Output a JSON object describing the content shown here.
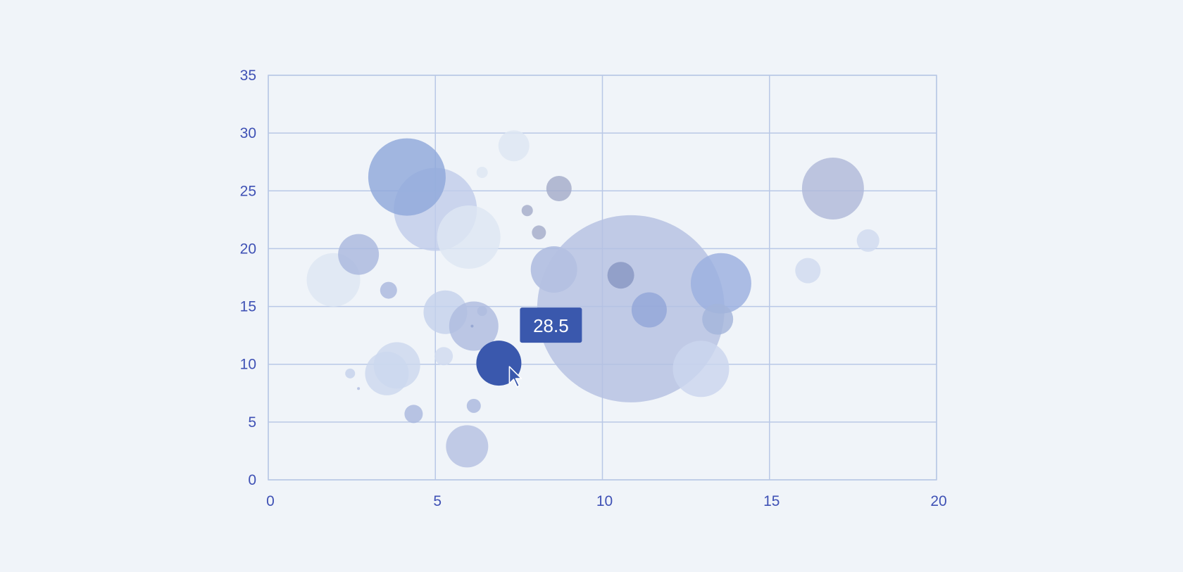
{
  "chart_data": {
    "type": "scatter",
    "variant": "bubble",
    "title": "",
    "xlabel": "",
    "ylabel": "",
    "xlim": [
      0,
      20
    ],
    "ylim": [
      0,
      35
    ],
    "x_ticks": [
      "0",
      "5",
      "10",
      "15",
      "20"
    ],
    "y_ticks": [
      "0",
      "5",
      "10",
      "15",
      "20",
      "25",
      "30",
      "35"
    ],
    "grid": true,
    "legend": "none",
    "colors": {
      "background": "#f0f4f9",
      "grid": "#b9c8e6",
      "tick_label": "#3f51b5",
      "highlight": "#3a58ad",
      "tooltip": "#3a58ad"
    },
    "points": [
      {
        "x": 1.95,
        "y": 17.3,
        "size": 38,
        "color": "#dde6f3"
      },
      {
        "x": 2.7,
        "y": 19.5,
        "size": 29,
        "color": "#a9b8de"
      },
      {
        "x": 2.45,
        "y": 9.2,
        "size": 7,
        "color": "#c5d2ec"
      },
      {
        "x": 2.7,
        "y": 7.9,
        "size": 2,
        "color": "#aebcdf"
      },
      {
        "x": 3.6,
        "y": 16.4,
        "size": 12,
        "color": "#a9b8de"
      },
      {
        "x": 3.55,
        "y": 9.2,
        "size": 31,
        "color": "#ccd8ee"
      },
      {
        "x": 3.85,
        "y": 9.9,
        "size": 33,
        "color": "#ccd8ee"
      },
      {
        "x": 4.35,
        "y": 5.7,
        "size": 13,
        "color": "#a9b8de"
      },
      {
        "x": 5.0,
        "y": 23.4,
        "size": 59,
        "color": "#c1cdea"
      },
      {
        "x": 6.0,
        "y": 21.0,
        "size": 45,
        "color": "#dde6f3"
      },
      {
        "x": 4.15,
        "y": 26.2,
        "size": 55,
        "color": "#8fa8da"
      },
      {
        "x": 5.3,
        "y": 14.5,
        "size": 31,
        "color": "#c5d2ec"
      },
      {
        "x": 5.25,
        "y": 10.7,
        "size": 13,
        "color": "#cfdaef"
      },
      {
        "x": 6.15,
        "y": 13.3,
        "size": 35,
        "color": "#aebcdf"
      },
      {
        "x": 6.1,
        "y": 13.3,
        "size": 2,
        "color": "#8fa1cf"
      },
      {
        "x": 6.4,
        "y": 14.6,
        "size": 7,
        "color": "#aebcdf"
      },
      {
        "x": 6.4,
        "y": 26.6,
        "size": 8,
        "color": "#dde6f3"
      },
      {
        "x": 7.35,
        "y": 28.9,
        "size": 22,
        "color": "#dde6f3"
      },
      {
        "x": 7.75,
        "y": 23.3,
        "size": 8,
        "color": "#a3acc9"
      },
      {
        "x": 8.1,
        "y": 21.4,
        "size": 10,
        "color": "#a3acc9"
      },
      {
        "x": 8.7,
        "y": 25.2,
        "size": 18,
        "color": "#a3acc9"
      },
      {
        "x": 8.55,
        "y": 18.2,
        "size": 33,
        "color": "#a9b8de"
      },
      {
        "x": 6.15,
        "y": 6.4,
        "size": 10,
        "color": "#a9b8de"
      },
      {
        "x": 5.95,
        "y": 2.9,
        "size": 30,
        "color": "#b4c1e2"
      },
      {
        "x": 10.85,
        "y": 14.8,
        "size": 133,
        "color": "#b4c1e2"
      },
      {
        "x": 10.55,
        "y": 17.7,
        "size": 19,
        "color": "#8896c2"
      },
      {
        "x": 11.4,
        "y": 14.7,
        "size": 25,
        "color": "#93a6d8"
      },
      {
        "x": 13.55,
        "y": 17.0,
        "size": 43,
        "color": "#9bb0df"
      },
      {
        "x": 13.45,
        "y": 13.9,
        "size": 22,
        "color": "#a4b4da"
      },
      {
        "x": 12.95,
        "y": 9.6,
        "size": 40,
        "color": "#cad6ee"
      },
      {
        "x": 16.15,
        "y": 18.1,
        "size": 18,
        "color": "#cfdaef"
      },
      {
        "x": 16.9,
        "y": 25.2,
        "size": 44,
        "color": "#b0b9d9"
      },
      {
        "x": 17.95,
        "y": 20.7,
        "size": 16,
        "color": "#cfdaef"
      },
      {
        "x": 6.9,
        "y": 10.1,
        "size": 32,
        "color": "#3a58ad",
        "highlighted": true
      }
    ],
    "tooltip": {
      "value": "28.5"
    }
  }
}
